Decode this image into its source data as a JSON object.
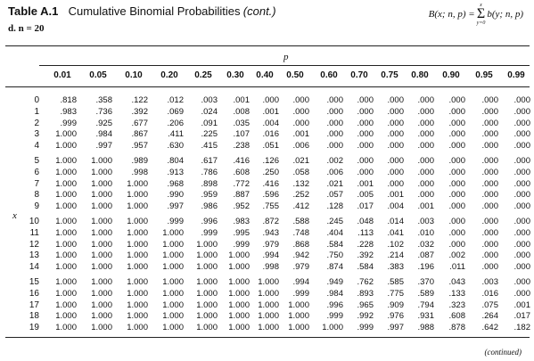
{
  "header": {
    "table_label": "Table A.1",
    "title": "Cumulative Binomial Probabilities",
    "continued": "(cont.)",
    "subtitle": "d. n = 20",
    "formula_lhs": "B(x; n, p) =",
    "sigma_top": "x",
    "sigma_bottom": "y=0",
    "formula_rhs": "b(y; n, p)"
  },
  "table": {
    "p_label": "p",
    "x_label": "x",
    "columns": [
      "0.01",
      "0.05",
      "0.10",
      "0.20",
      "0.25",
      "0.30",
      "0.40",
      "0.50",
      "0.60",
      "0.70",
      "0.75",
      "0.80",
      "0.90",
      "0.95",
      "0.99"
    ],
    "rows": [
      {
        "x": "0",
        "values": [
          ".818",
          ".358",
          ".122",
          ".012",
          ".003",
          ".001",
          ".000",
          ".000",
          ".000",
          ".000",
          ".000",
          ".000",
          ".000",
          ".000",
          ".000"
        ]
      },
      {
        "x": "1",
        "values": [
          ".983",
          ".736",
          ".392",
          ".069",
          ".024",
          ".008",
          ".001",
          ".000",
          ".000",
          ".000",
          ".000",
          ".000",
          ".000",
          ".000",
          ".000"
        ]
      },
      {
        "x": "2",
        "values": [
          ".999",
          ".925",
          ".677",
          ".206",
          ".091",
          ".035",
          ".004",
          ".000",
          ".000",
          ".000",
          ".000",
          ".000",
          ".000",
          ".000",
          ".000"
        ]
      },
      {
        "x": "3",
        "values": [
          "1.000",
          ".984",
          ".867",
          ".411",
          ".225",
          ".107",
          ".016",
          ".001",
          ".000",
          ".000",
          ".000",
          ".000",
          ".000",
          ".000",
          ".000"
        ]
      },
      {
        "x": "4",
        "values": [
          "1.000",
          ".997",
          ".957",
          ".630",
          ".415",
          ".238",
          ".051",
          ".006",
          ".000",
          ".000",
          ".000",
          ".000",
          ".000",
          ".000",
          ".000"
        ]
      },
      {
        "x": "5",
        "values": [
          "1.000",
          "1.000",
          ".989",
          ".804",
          ".617",
          ".416",
          ".126",
          ".021",
          ".002",
          ".000",
          ".000",
          ".000",
          ".000",
          ".000",
          ".000"
        ]
      },
      {
        "x": "6",
        "values": [
          "1.000",
          "1.000",
          ".998",
          ".913",
          ".786",
          ".608",
          ".250",
          ".058",
          ".006",
          ".000",
          ".000",
          ".000",
          ".000",
          ".000",
          ".000"
        ]
      },
      {
        "x": "7",
        "values": [
          "1.000",
          "1.000",
          "1.000",
          ".968",
          ".898",
          ".772",
          ".416",
          ".132",
          ".021",
          ".001",
          ".000",
          ".000",
          ".000",
          ".000",
          ".000"
        ]
      },
      {
        "x": "8",
        "values": [
          "1.000",
          "1.000",
          "1.000",
          ".990",
          ".959",
          ".887",
          ".596",
          ".252",
          ".057",
          ".005",
          ".001",
          ".000",
          ".000",
          ".000",
          ".000"
        ]
      },
      {
        "x": "9",
        "values": [
          "1.000",
          "1.000",
          "1.000",
          ".997",
          ".986",
          ".952",
          ".755",
          ".412",
          ".128",
          ".017",
          ".004",
          ".001",
          ".000",
          ".000",
          ".000"
        ]
      },
      {
        "x": "10",
        "values": [
          "1.000",
          "1.000",
          "1.000",
          ".999",
          ".996",
          ".983",
          ".872",
          ".588",
          ".245",
          ".048",
          ".014",
          ".003",
          ".000",
          ".000",
          ".000"
        ]
      },
      {
        "x": "11",
        "values": [
          "1.000",
          "1.000",
          "1.000",
          "1.000",
          ".999",
          ".995",
          ".943",
          ".748",
          ".404",
          ".113",
          ".041",
          ".010",
          ".000",
          ".000",
          ".000"
        ]
      },
      {
        "x": "12",
        "values": [
          "1.000",
          "1.000",
          "1.000",
          "1.000",
          "1.000",
          ".999",
          ".979",
          ".868",
          ".584",
          ".228",
          ".102",
          ".032",
          ".000",
          ".000",
          ".000"
        ]
      },
      {
        "x": "13",
        "values": [
          "1.000",
          "1.000",
          "1.000",
          "1.000",
          "1.000",
          "1.000",
          ".994",
          ".942",
          ".750",
          ".392",
          ".214",
          ".087",
          ".002",
          ".000",
          ".000"
        ]
      },
      {
        "x": "14",
        "values": [
          "1.000",
          "1.000",
          "1.000",
          "1.000",
          "1.000",
          "1.000",
          ".998",
          ".979",
          ".874",
          ".584",
          ".383",
          ".196",
          ".011",
          ".000",
          ".000"
        ]
      },
      {
        "x": "15",
        "values": [
          "1.000",
          "1.000",
          "1.000",
          "1.000",
          "1.000",
          "1.000",
          "1.000",
          ".994",
          ".949",
          ".762",
          ".585",
          ".370",
          ".043",
          ".003",
          ".000"
        ]
      },
      {
        "x": "16",
        "values": [
          "1.000",
          "1.000",
          "1.000",
          "1.000",
          "1.000",
          "1.000",
          "1.000",
          ".999",
          ".984",
          ".893",
          ".775",
          ".589",
          ".133",
          ".016",
          ".000"
        ]
      },
      {
        "x": "17",
        "values": [
          "1.000",
          "1.000",
          "1.000",
          "1.000",
          "1.000",
          "1.000",
          "1.000",
          "1.000",
          ".996",
          ".965",
          ".909",
          ".794",
          ".323",
          ".075",
          ".001"
        ]
      },
      {
        "x": "18",
        "values": [
          "1.000",
          "1.000",
          "1.000",
          "1.000",
          "1.000",
          "1.000",
          "1.000",
          "1.000",
          ".999",
          ".992",
          ".976",
          ".931",
          ".608",
          ".264",
          ".017"
        ]
      },
      {
        "x": "19",
        "values": [
          "1.000",
          "1.000",
          "1.000",
          "1.000",
          "1.000",
          "1.000",
          "1.000",
          "1.000",
          "1.000",
          ".999",
          ".997",
          ".988",
          ".878",
          ".642",
          ".182"
        ]
      }
    ]
  },
  "footer": {
    "continued_note": "(continued)"
  }
}
